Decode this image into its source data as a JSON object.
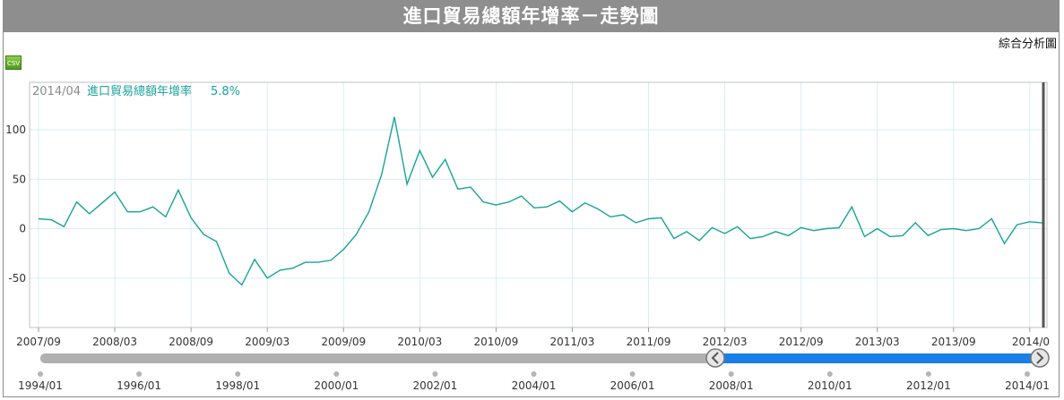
{
  "title": "進口貿易總額年增率－走勢圖",
  "analysis_link": "綜合分析圖",
  "csv_label": "CSV",
  "readout": {
    "date": "2014/04",
    "series": "進口貿易總額年增率",
    "value": "5.8%"
  },
  "colors": {
    "line": "#1aa39a",
    "grid": "#d8eef2",
    "scroll_track": "#b0b0b0",
    "scroll_range": "#1a7ee8",
    "title_bg": "#8e8e8e"
  },
  "chart_data": {
    "type": "line",
    "title": "進口貿易總額年增率－走勢圖",
    "series": [
      {
        "name": "進口貿易總額年增率",
        "values": [
          10,
          9,
          2,
          27,
          15,
          26,
          37,
          17,
          17,
          22,
          12,
          39,
          11,
          -6,
          -13,
          -45,
          -57,
          -31,
          -50,
          -42,
          -40,
          -34,
          -34,
          -32,
          -21,
          -6,
          17,
          55,
          113,
          45,
          79,
          52,
          70,
          40,
          42,
          27,
          24,
          27,
          33,
          21,
          22,
          28,
          17,
          26,
          20,
          12,
          14,
          6,
          10,
          11,
          -10,
          -3,
          -12,
          1,
          -5,
          2,
          -10,
          -8,
          -3,
          -7,
          1,
          -2,
          0,
          1,
          22,
          -8,
          0,
          -8,
          -7,
          6,
          -7,
          -1,
          0,
          -2,
          0,
          10,
          -15,
          4,
          7,
          5.8
        ]
      }
    ],
    "x_start": "2007/09",
    "x_end": "2014/04",
    "x_ticks": [
      "2007/09",
      "2008/03",
      "2008/09",
      "2009/03",
      "2009/09",
      "2010/03",
      "2010/09",
      "2011/03",
      "2011/09",
      "2012/03",
      "2012/09",
      "2013/03",
      "2013/09",
      "2014/0"
    ],
    "y_ticks": [
      100,
      50,
      0,
      -50
    ],
    "ylim": [
      -100,
      148
    ],
    "grid": true,
    "navigator_ticks": [
      "1994/01",
      "1996/01",
      "1998/01",
      "2000/01",
      "2002/01",
      "2004/01",
      "2006/01",
      "2008/01",
      "2010/01",
      "2012/01",
      "2014/01"
    ],
    "navigator_range": [
      "2007/09",
      "2014/04"
    ]
  }
}
